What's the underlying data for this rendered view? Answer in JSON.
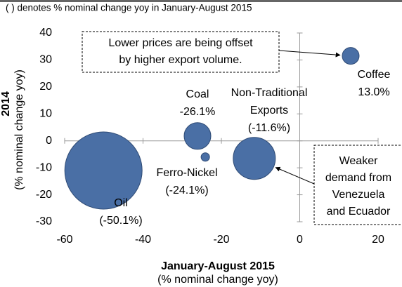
{
  "chart_data": {
    "type": "bubble",
    "subtitle": "( ) denotes % nominal change yoy in January-August 2015",
    "x_label": [
      "January-August 2015",
      "(% nominal change yoy)"
    ],
    "y_label": [
      "2014",
      "(% nominal change yoy)"
    ],
    "x": [
      -50.1,
      -26.1,
      -24.1,
      -11.6,
      13.0
    ],
    "values": [
      -11,
      1.8,
      -6,
      -6.5,
      31.5
    ],
    "sizes": [
      3025,
      361,
      36,
      900,
      144
    ],
    "labels": [
      [
        "Oil"
      ],
      [
        "Coal"
      ],
      [
        "Ferro-Nickel"
      ],
      [
        "Non-Traditional",
        "Exports"
      ],
      [
        "Coffee"
      ]
    ],
    "value_labels": [
      "(-50.1%)",
      "-26.1%",
      "(-24.1%)",
      "(-11.6%)",
      "13.0%"
    ],
    "color": "#4a6fa5",
    "xlim": [
      -60,
      20
    ],
    "xticks": [
      -60,
      -40,
      -20,
      0,
      20
    ],
    "ylim": [
      -30,
      40
    ],
    "yticks": [
      -30,
      -20,
      -10,
      0,
      10,
      20,
      30,
      40
    ],
    "annotations": [
      {
        "lines": [
          "Lower prices are being offset",
          "by higher export volume."
        ],
        "target": 4
      },
      {
        "lines": [
          "Weaker",
          "demand from",
          "Venezuela",
          "and Ecuador"
        ],
        "target": 3
      }
    ]
  }
}
